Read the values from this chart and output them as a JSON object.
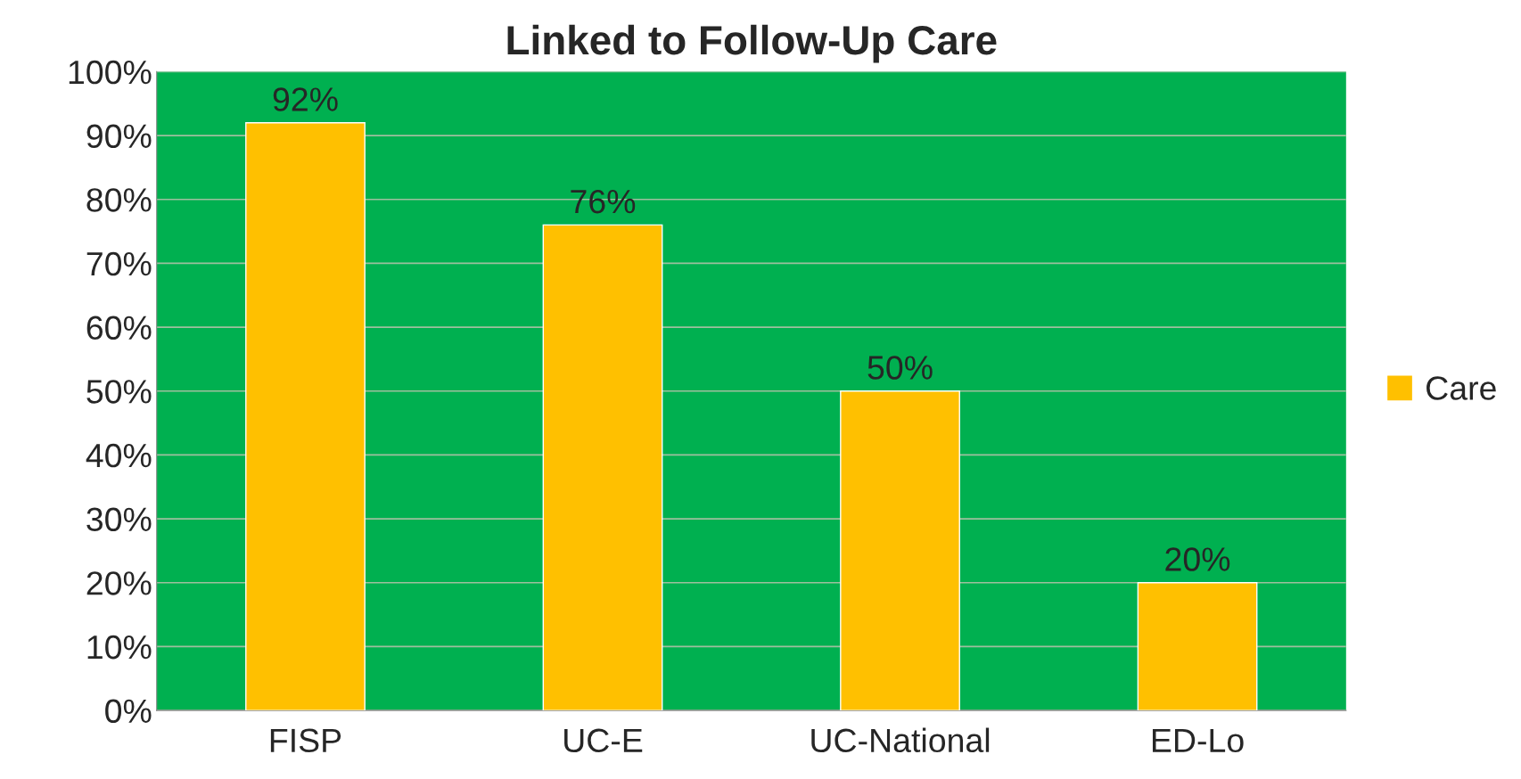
{
  "chart_data": {
    "type": "bar",
    "title": "Linked to Follow-Up Care",
    "categories": [
      "FISP",
      "UC-E",
      "UC-National",
      "ED-Lo"
    ],
    "series": [
      {
        "name": "Care",
        "color": "#ffc000",
        "values": [
          92,
          76,
          50,
          20
        ],
        "value_labels": [
          "92%",
          "76%",
          "50%",
          "20%"
        ]
      }
    ],
    "ylim": [
      0,
      100
    ],
    "yticks": [
      {
        "value": 0,
        "label": "0%"
      },
      {
        "value": 10,
        "label": "10%"
      },
      {
        "value": 20,
        "label": "20%"
      },
      {
        "value": 30,
        "label": "30%"
      },
      {
        "value": 40,
        "label": "40%"
      },
      {
        "value": 50,
        "label": "50%"
      },
      {
        "value": 60,
        "label": "60%"
      },
      {
        "value": 70,
        "label": "70%"
      },
      {
        "value": 80,
        "label": "80%"
      },
      {
        "value": 90,
        "label": "90%"
      },
      {
        "value": 100,
        "label": "100%"
      }
    ],
    "grid": "y",
    "legend": "right"
  }
}
